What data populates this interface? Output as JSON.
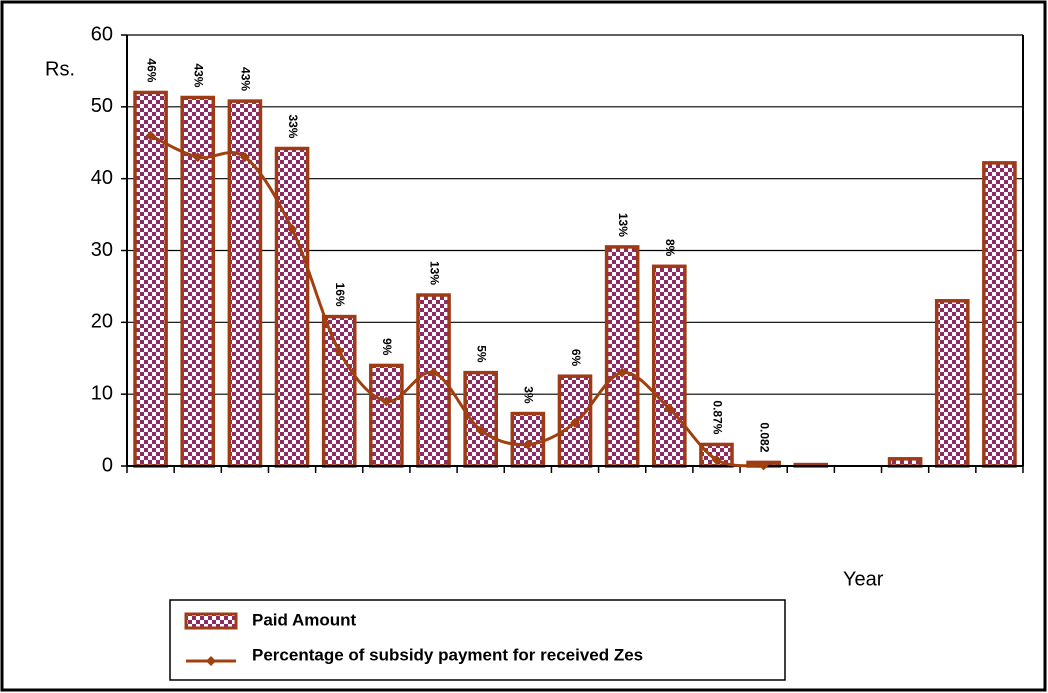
{
  "chart_data": {
    "type": "bar-line",
    "y_label": "Rs.",
    "x_label": "Year",
    "categories": [
      null,
      null,
      null,
      null,
      null,
      null,
      null,
      null,
      null,
      null,
      null,
      null,
      null,
      null,
      null,
      null,
      null,
      null,
      null
    ],
    "series": [
      {
        "name": "Paid Amount",
        "type": "bar",
        "color": "#9e3a14",
        "pattern_color": "#8e2a68",
        "values": [
          52,
          51.3,
          50.8,
          44.2,
          20.8,
          14,
          23.8,
          13,
          7.3,
          12.5,
          30.5,
          27.8,
          3,
          0.5,
          0.2,
          0,
          1,
          23,
          42.2
        ]
      },
      {
        "name": "Percentage of subsidy payment for received Zes",
        "type": "line",
        "color": "#a0400f",
        "values": [
          46,
          43,
          43,
          33,
          16,
          9,
          13,
          5,
          3,
          6,
          13,
          8,
          0.87,
          0.082,
          null,
          null,
          null,
          null,
          null
        ],
        "value_labels": [
          "46%",
          "43%",
          "43%",
          "33%",
          "16%",
          "9%",
          "13%",
          "5%",
          "3%",
          "6%",
          "13%",
          "8%",
          "0.87%",
          "0.082",
          null,
          null,
          null,
          null,
          null
        ]
      }
    ],
    "ylim": [
      0,
      60
    ],
    "yticks": [
      0,
      10,
      20,
      30,
      40,
      50,
      60
    ],
    "grid": true
  }
}
